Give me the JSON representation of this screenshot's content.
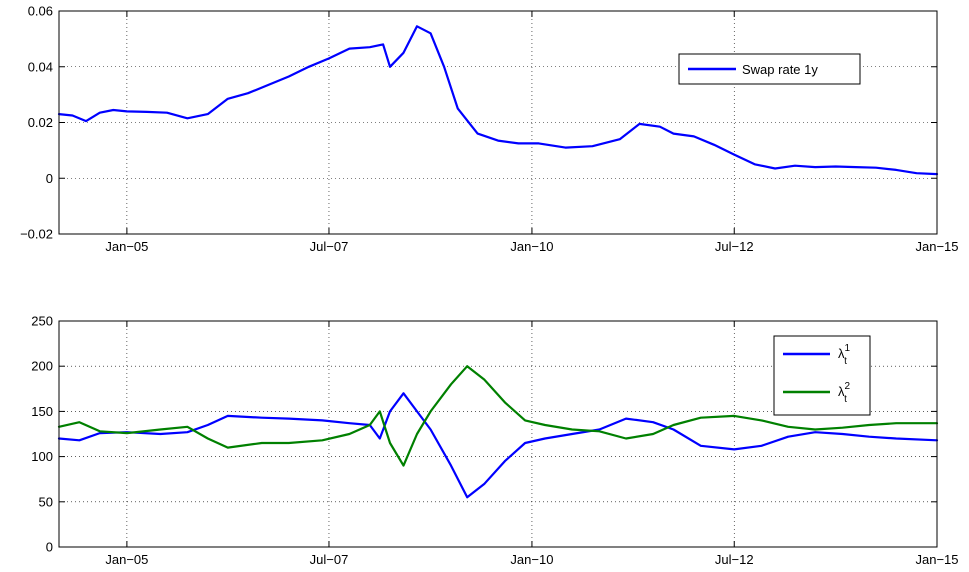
{
  "chart_data": [
    {
      "type": "line",
      "title": "",
      "xlabel": "",
      "ylabel": "",
      "x_range": [
        "2004-03-01",
        "2015-01-01"
      ],
      "ylim": [
        -0.02,
        0.06
      ],
      "yticks": [
        -0.02,
        0,
        0.02,
        0.04,
        0.06
      ],
      "ytick_labels": [
        "−0.02",
        "0",
        "0.02",
        "0.04",
        "0.06"
      ],
      "xtick_labels": [
        "Jan−05",
        "Jul−07",
        "Jan−10",
        "Jul−12",
        "Jan−15"
      ],
      "xtick_dates": [
        "2005-01-01",
        "2007-07-01",
        "2010-01-01",
        "2012-07-01",
        "2015-01-01"
      ],
      "grid": true,
      "legend_position": "top-right",
      "series": [
        {
          "name": "Swap rate 1y",
          "color": "#0000ff",
          "points": [
            [
              "2004-03-01",
              0.023
            ],
            [
              "2004-05-01",
              0.0225
            ],
            [
              "2004-07-01",
              0.0205
            ],
            [
              "2004-09-01",
              0.0235
            ],
            [
              "2004-11-01",
              0.0245
            ],
            [
              "2005-01-01",
              0.024
            ],
            [
              "2005-04-01",
              0.0238
            ],
            [
              "2005-07-01",
              0.0235
            ],
            [
              "2005-10-01",
              0.0215
            ],
            [
              "2006-01-01",
              0.023
            ],
            [
              "2006-04-01",
              0.0285
            ],
            [
              "2006-07-01",
              0.0305
            ],
            [
              "2006-10-01",
              0.0335
            ],
            [
              "2007-01-01",
              0.0365
            ],
            [
              "2007-04-01",
              0.04
            ],
            [
              "2007-07-01",
              0.043
            ],
            [
              "2007-10-01",
              0.0465
            ],
            [
              "2008-01-01",
              0.047
            ],
            [
              "2008-03-01",
              0.048
            ],
            [
              "2008-04-01",
              0.04
            ],
            [
              "2008-06-01",
              0.045
            ],
            [
              "2008-08-01",
              0.0545
            ],
            [
              "2008-10-01",
              0.052
            ],
            [
              "2008-12-01",
              0.04
            ],
            [
              "2009-02-01",
              0.025
            ],
            [
              "2009-05-01",
              0.016
            ],
            [
              "2009-08-01",
              0.0135
            ],
            [
              "2009-11-01",
              0.0125
            ],
            [
              "2010-02-01",
              0.0125
            ],
            [
              "2010-06-01",
              0.011
            ],
            [
              "2010-10-01",
              0.0115
            ],
            [
              "2011-02-01",
              0.014
            ],
            [
              "2011-05-01",
              0.0195
            ],
            [
              "2011-08-01",
              0.0185
            ],
            [
              "2011-10-01",
              0.016
            ],
            [
              "2012-01-01",
              0.015
            ],
            [
              "2012-04-01",
              0.012
            ],
            [
              "2012-07-01",
              0.0085
            ],
            [
              "2012-10-01",
              0.005
            ],
            [
              "2013-01-01",
              0.0035
            ],
            [
              "2013-04-01",
              0.0045
            ],
            [
              "2013-07-01",
              0.004
            ],
            [
              "2013-10-01",
              0.0042
            ],
            [
              "2014-01-01",
              0.004
            ],
            [
              "2014-04-01",
              0.0038
            ],
            [
              "2014-07-01",
              0.003
            ],
            [
              "2014-10-01",
              0.0018
            ],
            [
              "2015-01-01",
              0.0015
            ]
          ]
        }
      ]
    },
    {
      "type": "line",
      "title": "",
      "xlabel": "",
      "ylabel": "",
      "x_range": [
        "2004-03-01",
        "2015-01-01"
      ],
      "ylim": [
        0,
        250
      ],
      "yticks": [
        0,
        50,
        100,
        150,
        200,
        250
      ],
      "ytick_labels": [
        "0",
        "50",
        "100",
        "150",
        "200",
        "250"
      ],
      "xtick_labels": [
        "Jan−05",
        "Jul−07",
        "Jan−10",
        "Jul−12",
        "Jan−15"
      ],
      "xtick_dates": [
        "2005-01-01",
        "2007-07-01",
        "2010-01-01",
        "2012-07-01",
        "2015-01-01"
      ],
      "grid": true,
      "legend_position": "top-right",
      "series": [
        {
          "name": "λ",
          "superscript": "1",
          "subscript": "t",
          "color": "#0000ff",
          "points": [
            [
              "2004-03-01",
              120
            ],
            [
              "2004-06-01",
              118
            ],
            [
              "2004-09-01",
              126
            ],
            [
              "2005-01-01",
              127
            ],
            [
              "2005-06-01",
              125
            ],
            [
              "2005-10-01",
              127
            ],
            [
              "2006-01-01",
              135
            ],
            [
              "2006-04-01",
              145
            ],
            [
              "2006-09-01",
              143
            ],
            [
              "2007-01-01",
              142
            ],
            [
              "2007-06-01",
              140
            ],
            [
              "2007-10-01",
              137
            ],
            [
              "2008-01-01",
              135
            ],
            [
              "2008-02-15",
              120
            ],
            [
              "2008-04-01",
              150
            ],
            [
              "2008-06-01",
              170
            ],
            [
              "2008-08-01",
              150
            ],
            [
              "2008-10-01",
              130
            ],
            [
              "2009-01-01",
              90
            ],
            [
              "2009-03-15",
              55
            ],
            [
              "2009-06-01",
              70
            ],
            [
              "2009-09-01",
              95
            ],
            [
              "2009-12-01",
              115
            ],
            [
              "2010-03-01",
              120
            ],
            [
              "2010-07-01",
              125
            ],
            [
              "2010-11-01",
              130
            ],
            [
              "2011-03-01",
              142
            ],
            [
              "2011-07-01",
              138
            ],
            [
              "2011-10-01",
              130
            ],
            [
              "2012-02-01",
              112
            ],
            [
              "2012-07-01",
              108
            ],
            [
              "2012-11-01",
              112
            ],
            [
              "2013-03-01",
              122
            ],
            [
              "2013-07-01",
              127
            ],
            [
              "2013-11-01",
              125
            ],
            [
              "2014-03-01",
              122
            ],
            [
              "2014-07-01",
              120
            ],
            [
              "2015-01-01",
              118
            ]
          ]
        },
        {
          "name": "λ",
          "superscript": "2",
          "subscript": "t",
          "color": "#008000",
          "points": [
            [
              "2004-03-01",
              133
            ],
            [
              "2004-06-01",
              138
            ],
            [
              "2004-09-01",
              128
            ],
            [
              "2005-01-01",
              126
            ],
            [
              "2005-06-01",
              130
            ],
            [
              "2005-10-01",
              133
            ],
            [
              "2006-01-01",
              120
            ],
            [
              "2006-04-01",
              110
            ],
            [
              "2006-09-01",
              115
            ],
            [
              "2007-01-01",
              115
            ],
            [
              "2007-06-01",
              118
            ],
            [
              "2007-10-01",
              125
            ],
            [
              "2008-01-01",
              135
            ],
            [
              "2008-02-15",
              150
            ],
            [
              "2008-04-01",
              115
            ],
            [
              "2008-06-01",
              90
            ],
            [
              "2008-08-01",
              125
            ],
            [
              "2008-10-01",
              150
            ],
            [
              "2009-01-01",
              180
            ],
            [
              "2009-03-15",
              200
            ],
            [
              "2009-06-01",
              185
            ],
            [
              "2009-09-01",
              160
            ],
            [
              "2009-12-01",
              140
            ],
            [
              "2010-03-01",
              135
            ],
            [
              "2010-07-01",
              130
            ],
            [
              "2010-11-01",
              128
            ],
            [
              "2011-03-01",
              120
            ],
            [
              "2011-07-01",
              125
            ],
            [
              "2011-10-01",
              135
            ],
            [
              "2012-02-01",
              143
            ],
            [
              "2012-07-01",
              145
            ],
            [
              "2012-11-01",
              140
            ],
            [
              "2013-03-01",
              133
            ],
            [
              "2013-07-01",
              130
            ],
            [
              "2013-11-01",
              132
            ],
            [
              "2014-03-01",
              135
            ],
            [
              "2014-07-01",
              137
            ],
            [
              "2015-01-01",
              137
            ]
          ]
        }
      ]
    }
  ]
}
